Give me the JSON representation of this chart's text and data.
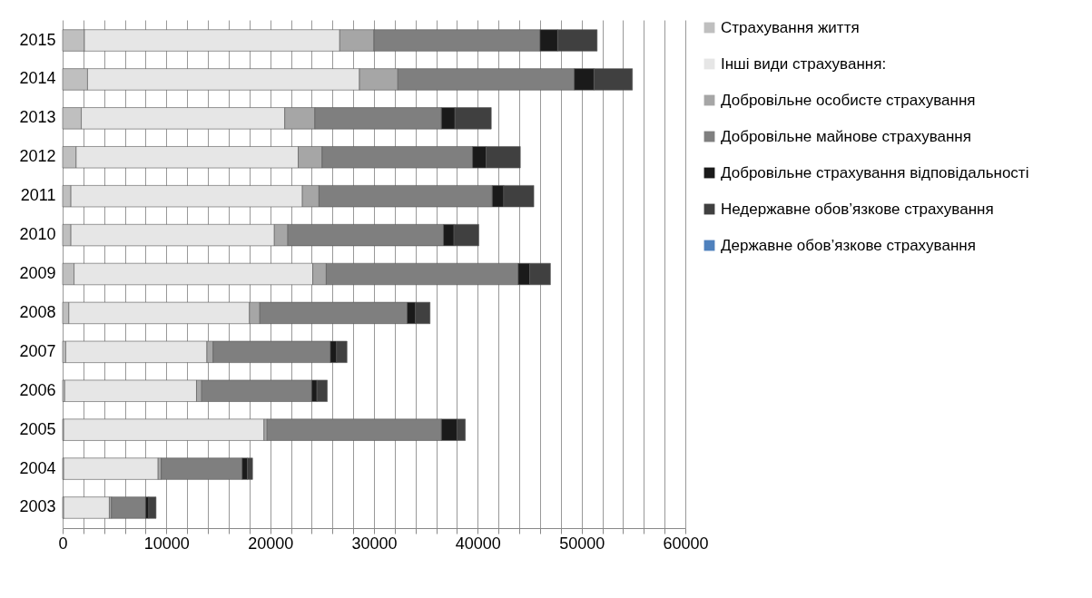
{
  "chart_data": {
    "type": "bar",
    "orientation": "horizontal",
    "stacked": true,
    "categories": [
      "2015",
      "2014",
      "2013",
      "2012",
      "2011",
      "2010",
      "2009",
      "2008",
      "2007",
      "2006",
      "2005",
      "2004",
      "2003"
    ],
    "series": [
      {
        "name": "Страхування життя",
        "color": "#bfbfbf",
        "values": [
          2100,
          2400,
          1800,
          1300,
          800,
          800,
          1100,
          600,
          300,
          200,
          100,
          100,
          100
        ]
      },
      {
        "name": "Інші види страхування:",
        "color": "#e6e6e6",
        "values": [
          24600,
          26200,
          19600,
          21400,
          22300,
          19600,
          23000,
          17400,
          13600,
          12700,
          19300,
          9100,
          4400
        ]
      },
      {
        "name": "Добровільне особисте страхування",
        "color": "#a6a6a6",
        "values": [
          3300,
          3700,
          2900,
          2300,
          1600,
          1300,
          1300,
          1000,
          600,
          500,
          300,
          300,
          200
        ]
      },
      {
        "name": "Добровільне майнове страхування",
        "color": "#7f7f7f",
        "values": [
          16000,
          17000,
          12200,
          14500,
          16700,
          15000,
          18500,
          14200,
          11300,
          10600,
          16800,
          7800,
          3300
        ]
      },
      {
        "name": "Добровільне страхування відповідальності",
        "color": "#1a1a1a",
        "values": [
          1700,
          1900,
          1300,
          1300,
          1100,
          1000,
          1100,
          800,
          600,
          500,
          1500,
          500,
          300
        ]
      },
      {
        "name": "Недержавне обов’язкове страхування",
        "color": "#404040",
        "values": [
          3800,
          3700,
          3500,
          3300,
          2900,
          2400,
          2000,
          1400,
          1000,
          1000,
          800,
          500,
          700
        ]
      },
      {
        "name": "Державне обов’язкове страхування",
        "color": "#4f81bd",
        "values": [
          0,
          0,
          0,
          0,
          0,
          0,
          0,
          0,
          0,
          0,
          0,
          0,
          0
        ]
      }
    ],
    "xlim": [
      0,
      60000
    ],
    "xticks": [
      0,
      {
        "value": 2000,
        "label": null
      },
      {
        "value": 4000,
        "label": null
      },
      {
        "value": 6000,
        "label": null
      },
      {
        "value": 8000,
        "label": null
      },
      10000,
      {
        "value": 12000,
        "label": null
      },
      {
        "value": 14000,
        "label": null
      },
      {
        "value": 16000,
        "label": null
      },
      {
        "value": 18000,
        "label": null
      },
      20000,
      {
        "value": 22000,
        "label": null
      },
      {
        "value": 24000,
        "label": null
      },
      {
        "value": 26000,
        "label": null
      },
      {
        "value": 28000,
        "label": null
      },
      30000,
      {
        "value": 32000,
        "label": null
      },
      {
        "value": 34000,
        "label": null
      },
      {
        "value": 36000,
        "label": null
      },
      {
        "value": 38000,
        "label": null
      },
      40000,
      {
        "value": 42000,
        "label": null
      },
      {
        "value": 44000,
        "label": null
      },
      {
        "value": 46000,
        "label": null
      },
      {
        "value": 48000,
        "label": null
      },
      50000,
      {
        "value": 52000,
        "label": null
      },
      {
        "value": 54000,
        "label": null
      },
      {
        "value": 56000,
        "label": null
      },
      {
        "value": 58000,
        "label": null
      },
      60000
    ],
    "grid": "x",
    "legend": "right"
  }
}
